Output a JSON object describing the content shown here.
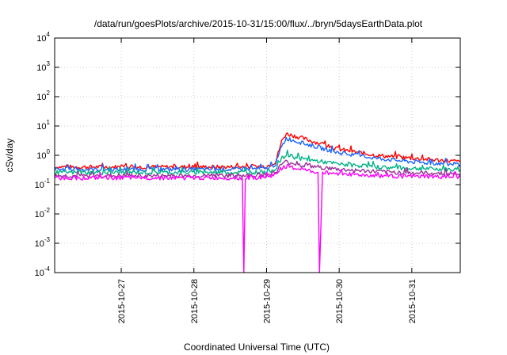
{
  "chart_data": {
    "type": "line",
    "title": "/data/run/goesPlots/archive/2015-10-31/15:00/flux/../bryn/5daysEarthData.plot",
    "xlabel": "Coordinated Universal Time (UTC)",
    "ylabel": "cSv/day",
    "y_scale": "log",
    "ylim": [
      0.0001,
      10000
    ],
    "x_unit": "days",
    "xlim": [
      "2015-10-26 02:00",
      "2015-10-31 16:00"
    ],
    "x_ticks": [
      "2015-10-27",
      "2015-10-28",
      "2015-10-29",
      "2015-10-30",
      "2015-10-31"
    ],
    "y_ticks": [
      {
        "value": 10000,
        "base": "10",
        "exp": "4"
      },
      {
        "value": 1000,
        "base": "10",
        "exp": "3"
      },
      {
        "value": 100,
        "base": "10",
        "exp": "2"
      },
      {
        "value": 10,
        "base": "10",
        "exp": "1"
      },
      {
        "value": 1,
        "base": "10",
        "exp": "0"
      },
      {
        "value": 0.1,
        "base": "10",
        "exp": "-1"
      },
      {
        "value": 0.01,
        "base": "10",
        "exp": "-2"
      },
      {
        "value": 0.001,
        "base": "10",
        "exp": "-3"
      },
      {
        "value": 0.0001,
        "base": "10",
        "exp": "-4"
      }
    ],
    "grid": true,
    "legend": "none",
    "series": [
      {
        "color": "#ff0000",
        "x": [
          "2015-10-26 02:00",
          "2015-10-26 12:00",
          "2015-10-27 00:00",
          "2015-10-27 12:00",
          "2015-10-28 00:00",
          "2015-10-28 12:00",
          "2015-10-29 00:00",
          "2015-10-29 03:00",
          "2015-10-29 05:00",
          "2015-10-29 06:30",
          "2015-10-29 12:00",
          "2015-10-30 00:00",
          "2015-10-30 12:00",
          "2015-10-31 00:00",
          "2015-10-31 12:00",
          "2015-10-31 16:00"
        ],
        "y": [
          0.4,
          0.4,
          0.4,
          0.4,
          0.4,
          0.4,
          0.42,
          0.6,
          3.0,
          5.5,
          3.8,
          1.6,
          1.0,
          0.8,
          0.65,
          0.6
        ]
      },
      {
        "color": "#1a66ff",
        "x": [
          "2015-10-26 02:00",
          "2015-10-26 12:00",
          "2015-10-27 00:00",
          "2015-10-27 12:00",
          "2015-10-28 00:00",
          "2015-10-28 12:00",
          "2015-10-29 00:00",
          "2015-10-29 03:00",
          "2015-10-29 05:00",
          "2015-10-29 06:30",
          "2015-10-29 12:00",
          "2015-10-30 00:00",
          "2015-10-30 12:00",
          "2015-10-31 00:00",
          "2015-10-31 12:00",
          "2015-10-31 16:00"
        ],
        "y": [
          0.33,
          0.33,
          0.33,
          0.33,
          0.33,
          0.33,
          0.35,
          0.5,
          2.0,
          3.8,
          2.6,
          1.2,
          0.8,
          0.6,
          0.5,
          0.48
        ]
      },
      {
        "color": "#00b386",
        "x": [
          "2015-10-26 02:00",
          "2015-10-26 12:00",
          "2015-10-27 00:00",
          "2015-10-27 12:00",
          "2015-10-28 00:00",
          "2015-10-28 12:00",
          "2015-10-29 00:00",
          "2015-10-29 03:00",
          "2015-10-29 05:00",
          "2015-10-29 06:30",
          "2015-10-29 12:00",
          "2015-10-30 00:00",
          "2015-10-30 12:00",
          "2015-10-31 00:00",
          "2015-10-31 12:00",
          "2015-10-31 16:00"
        ],
        "y": [
          0.26,
          0.26,
          0.26,
          0.26,
          0.26,
          0.26,
          0.27,
          0.35,
          0.75,
          1.0,
          0.75,
          0.5,
          0.4,
          0.36,
          0.33,
          0.32
        ]
      },
      {
        "color": "#993399",
        "x": [
          "2015-10-26 02:00",
          "2015-10-26 12:00",
          "2015-10-27 00:00",
          "2015-10-27 12:00",
          "2015-10-28 00:00",
          "2015-10-28 12:00",
          "2015-10-29 00:00",
          "2015-10-29 03:00",
          "2015-10-29 05:00",
          "2015-10-29 06:30",
          "2015-10-29 12:00",
          "2015-10-30 00:00",
          "2015-10-30 12:00",
          "2015-10-31 00:00",
          "2015-10-31 12:00",
          "2015-10-31 16:00"
        ],
        "y": [
          0.2,
          0.2,
          0.2,
          0.2,
          0.2,
          0.2,
          0.21,
          0.27,
          0.5,
          0.6,
          0.45,
          0.33,
          0.28,
          0.25,
          0.24,
          0.23
        ]
      },
      {
        "color": "#ff00ff",
        "x": [
          "2015-10-26 02:00",
          "2015-10-26 12:00",
          "2015-10-27 00:00",
          "2015-10-27 12:00",
          "2015-10-28 00:00",
          "2015-10-28 12:00",
          "2015-10-28 16:00",
          "2015-10-28 16:30",
          "2015-10-28 17:00",
          "2015-10-29 00:00",
          "2015-10-29 03:00",
          "2015-10-29 05:00",
          "2015-10-29 06:30",
          "2015-10-29 12:00",
          "2015-10-29 17:00",
          "2015-10-29 17:30",
          "2015-10-29 18:30",
          "2015-10-30 00:00",
          "2015-10-30 12:00",
          "2015-10-31 00:00",
          "2015-10-31 12:00",
          "2015-10-31 16:00"
        ],
        "y": [
          0.17,
          0.17,
          0.17,
          0.17,
          0.17,
          0.17,
          0.17,
          0.0001,
          0.17,
          0.18,
          0.22,
          0.36,
          0.42,
          0.32,
          0.26,
          0.0001,
          0.26,
          0.24,
          0.2,
          0.19,
          0.18,
          0.18
        ]
      }
    ]
  }
}
